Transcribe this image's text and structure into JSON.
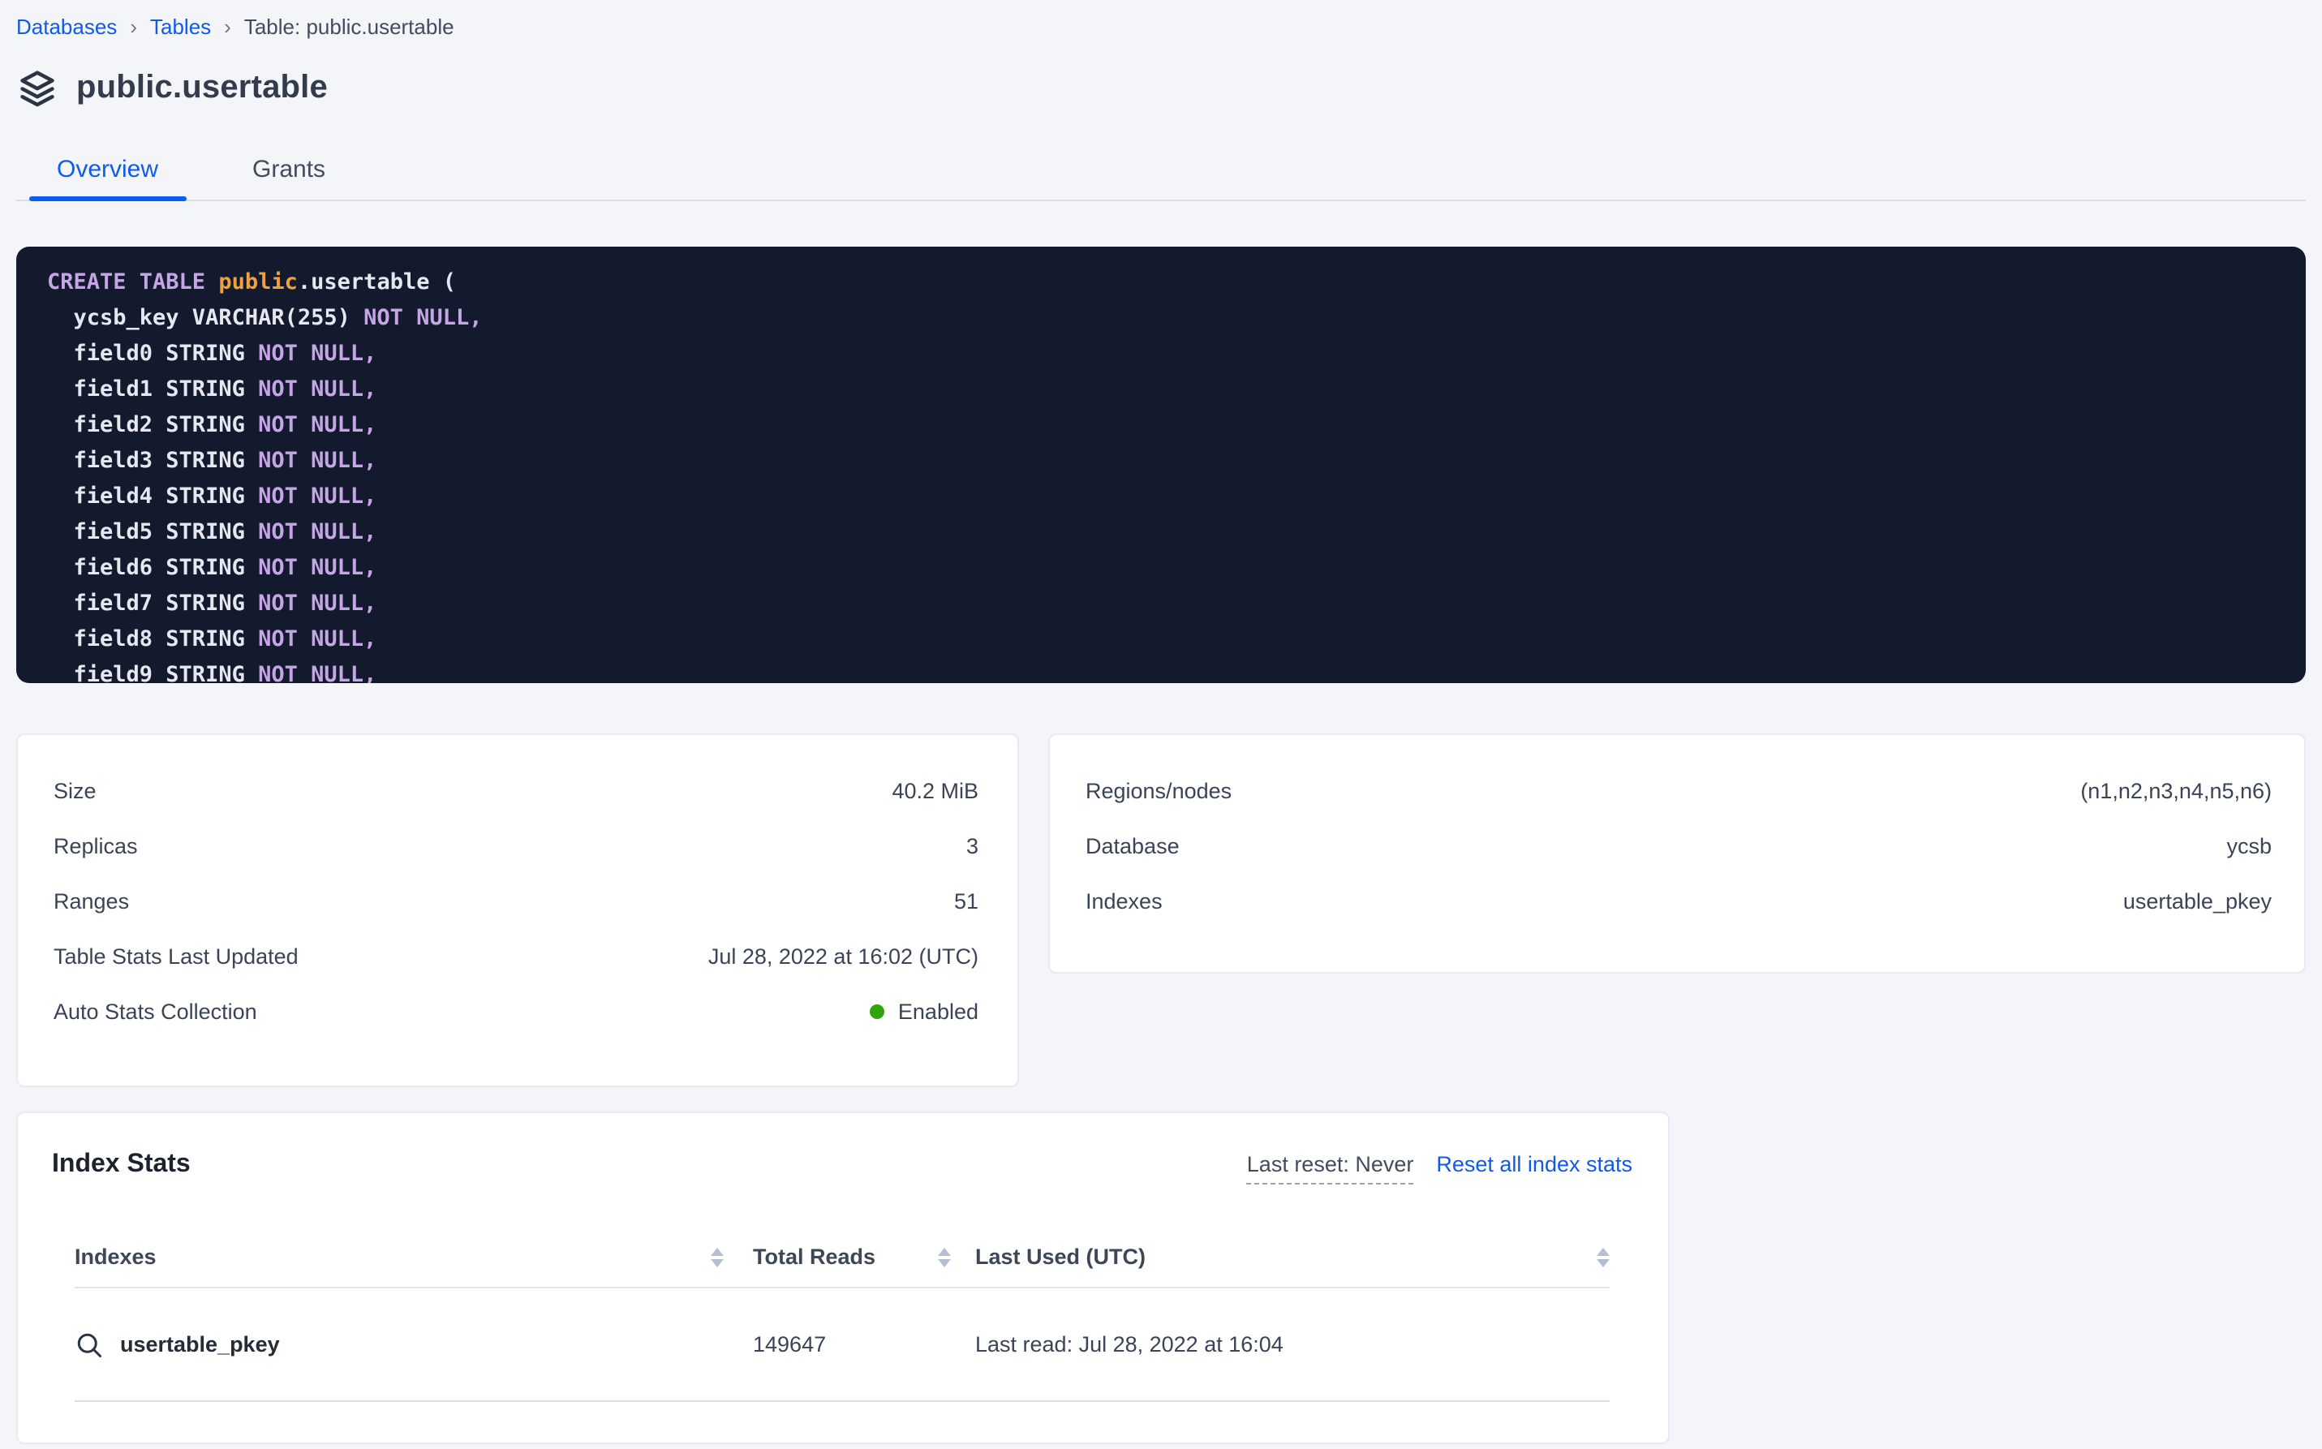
{
  "colors": {
    "accent_blue": "#115ae8",
    "tab_underline_blue": "#0b5cf2",
    "status_green": "#2ea50c",
    "code_background": "#141a2d",
    "code_text": "#e6e8ef",
    "code_keyword": "#c5a5e6",
    "code_schema_orange": "#efa13f",
    "page_background": "#f4f5f9"
  },
  "breadcrumb": {
    "links": [
      "Databases",
      "Tables"
    ],
    "separator": "›",
    "current": "Table: public.usertable"
  },
  "page": {
    "title": "public.usertable",
    "title_icon": "stack-layers-icon"
  },
  "tabs": [
    {
      "label": "Overview",
      "active": true
    },
    {
      "label": "Grants",
      "active": false
    }
  ],
  "sql": {
    "lines": [
      [
        [
          "kw",
          "CREATE TABLE "
        ],
        [
          "db",
          "public"
        ],
        [
          "",
          "​.usertable ("
        ]
      ],
      [
        [
          "",
          "  ycsb_key VARCHAR(255) "
        ],
        [
          "kw",
          "NOT NULL,"
        ]
      ],
      [
        [
          "",
          "  field0 STRING "
        ],
        [
          "kw",
          "NOT NULL,"
        ]
      ],
      [
        [
          "",
          "  field1 STRING "
        ],
        [
          "kw",
          "NOT NULL,"
        ]
      ],
      [
        [
          "",
          "  field2 STRING "
        ],
        [
          "kw",
          "NOT NULL,"
        ]
      ],
      [
        [
          "",
          "  field3 STRING "
        ],
        [
          "kw",
          "NOT NULL,"
        ]
      ],
      [
        [
          "",
          "  field4 STRING "
        ],
        [
          "kw",
          "NOT NULL,"
        ]
      ],
      [
        [
          "",
          "  field5 STRING "
        ],
        [
          "kw",
          "NOT NULL,"
        ]
      ],
      [
        [
          "",
          "  field6 STRING "
        ],
        [
          "kw",
          "NOT NULL,"
        ]
      ],
      [
        [
          "",
          "  field7 STRING "
        ],
        [
          "kw",
          "NOT NULL,"
        ]
      ],
      [
        [
          "",
          "  field8 STRING "
        ],
        [
          "kw",
          "NOT NULL,"
        ]
      ],
      [
        [
          "",
          "  field9 STRING "
        ],
        [
          "kw",
          "NOT NULL,"
        ]
      ]
    ]
  },
  "overview_cards": {
    "left": [
      {
        "label": "Size",
        "value": "40.2 MiB"
      },
      {
        "label": "Replicas",
        "value": "3"
      },
      {
        "label": "Ranges",
        "value": "51"
      },
      {
        "label": "Table Stats Last Updated",
        "value": "Jul 28, 2022 at 16:02 (UTC)"
      },
      {
        "label": "Auto Stats Collection",
        "value": "Enabled",
        "dot": true
      }
    ],
    "right": [
      {
        "label": "Regions/nodes",
        "value": "(n1,n2,n3,n4,n5,n6)"
      },
      {
        "label": "Database",
        "value": "ycsb"
      },
      {
        "label": "Indexes",
        "value": "usertable_pkey"
      }
    ]
  },
  "index_stats": {
    "title": "Index Stats",
    "last_reset": "Last reset: Never",
    "reset_link": "Reset all index stats",
    "columns": [
      {
        "label": "Indexes"
      },
      {
        "label": "Total Reads"
      },
      {
        "label": "Last Used (UTC)"
      }
    ],
    "row_icon": "magnifier-icon",
    "rows": [
      {
        "index_name": "usertable_pkey",
        "total_reads": "149647",
        "last_used": "Last read: Jul 28, 2022 at 16:04"
      }
    ]
  }
}
